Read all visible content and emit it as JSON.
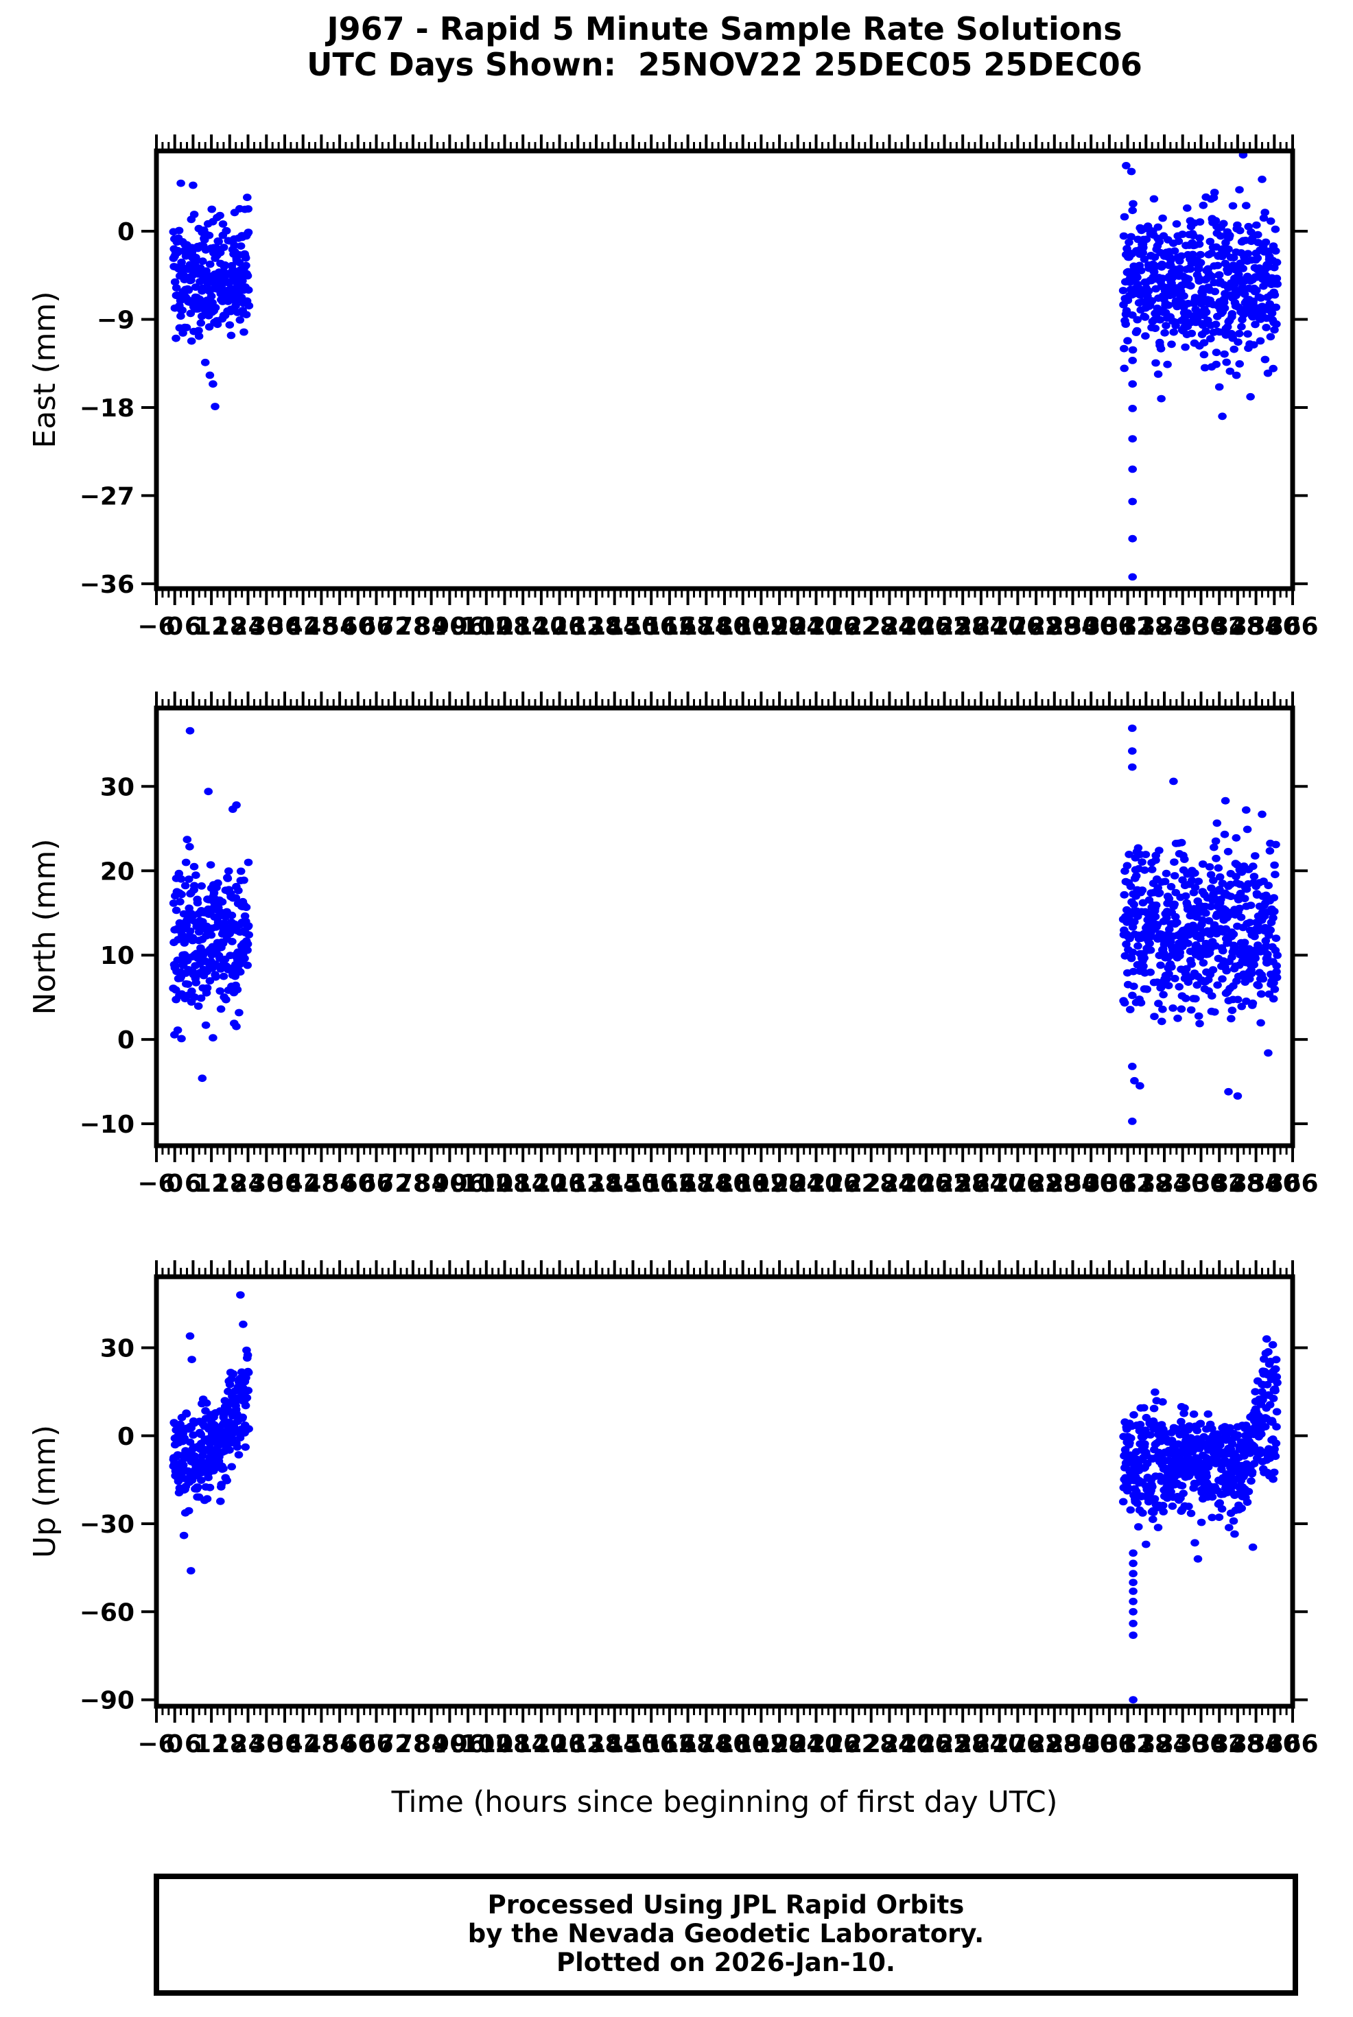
{
  "title": {
    "line1": "J967 - Rapid 5 Minute Sample Rate Solutions",
    "line2": "UTC Days Shown:  25NOV22 25DEC05 25DEC06"
  },
  "footer": {
    "line1": "Processed Using JPL Rapid Orbits",
    "line2": "by the Nevada Geodetic Laboratory.",
    "line3": "Plotted on 2026-Jan-10."
  },
  "colors": {
    "marker": "#0000ff",
    "axis": "#000000",
    "background": "#ffffff"
  },
  "chart_data": {
    "type": "scatter",
    "station": "J967",
    "utc_days": [
      "25NOV22",
      "25DEC05",
      "25DEC06"
    ],
    "xlabel": "Time (hours since beginning of first day UTC)",
    "x_axis": {
      "min": -6,
      "max": 366,
      "major_tick_step": 6,
      "minor_tick_step": 2,
      "label_step": 6
    },
    "marker": {
      "shape": "ellipse",
      "rx": 6.3,
      "ry": 5.4
    },
    "grid": false,
    "seed": 20260110,
    "panels": [
      {
        "id": "east",
        "ylabel": "East (mm)",
        "ylim": [
          -36.5,
          8.2
        ],
        "yticks": [
          0,
          -9,
          -18,
          -27,
          -36
        ],
        "clusters": [
          {
            "h0": -0.5,
            "h1": 24.3,
            "n": 288,
            "m0": -4.3,
            "m1": -4.8,
            "sd": 3.1,
            "lo": -12.5,
            "hi": 4.6
          },
          {
            "h0": 310.5,
            "h1": 361.0,
            "n": 576,
            "m0": -4.8,
            "m1": -5.8,
            "sd": 3.6,
            "lo": -14.8,
            "hi": 4.8
          }
        ],
        "outliers": [
          [
            2,
            4.9
          ],
          [
            6,
            4.7
          ],
          [
            10,
            -13.4
          ],
          [
            11.5,
            -14.7
          ],
          [
            12.5,
            -15.6
          ],
          [
            13.2,
            -17.9
          ],
          [
            313.6,
            -13.2
          ],
          [
            313.6,
            -15.6
          ],
          [
            313.6,
            -18.1
          ],
          [
            313.6,
            -21.2
          ],
          [
            313.6,
            -24.3
          ],
          [
            313.6,
            -27.6
          ],
          [
            313.6,
            -31.4
          ],
          [
            313.6,
            -35.3
          ],
          [
            311.5,
            6.7
          ],
          [
            313.2,
            6.1
          ],
          [
            349.8,
            7.8
          ],
          [
            356,
            5.3
          ],
          [
            322,
            -14.6
          ],
          [
            323,
            -17.1
          ],
          [
            337,
            -12.6
          ],
          [
            341,
            -13.6
          ],
          [
            342,
            -15.9
          ],
          [
            343,
            -18.9
          ],
          [
            352.2,
            -16.9
          ],
          [
            357,
            -13.1
          ]
        ]
      },
      {
        "id": "north",
        "ylabel": "North (mm)",
        "ylim": [
          -12.6,
          39.3
        ],
        "yticks": [
          30,
          20,
          10,
          0,
          -10
        ],
        "clusters": [
          {
            "h0": -0.5,
            "h1": 24.3,
            "n": 288,
            "m0": 11.2,
            "m1": 11.8,
            "sd": 4.4,
            "lo": 0.3,
            "hi": 24.2
          },
          {
            "h0": 310.5,
            "h1": 361.0,
            "n": 576,
            "m0": 13.5,
            "m1": 12.5,
            "sd": 4.9,
            "lo": 1.6,
            "hi": 26.2
          }
        ],
        "outliers": [
          [
            5,
            36.6
          ],
          [
            11,
            29.4
          ],
          [
            19,
            27.3
          ],
          [
            20.2,
            27.8
          ],
          [
            9,
            -4.6
          ],
          [
            2.2,
            0.1
          ],
          [
            12.5,
            0.2
          ],
          [
            313.5,
            36.9
          ],
          [
            313.5,
            34.2
          ],
          [
            313.5,
            32.3
          ],
          [
            327,
            30.6
          ],
          [
            344,
            28.3
          ],
          [
            350.8,
            27.2
          ],
          [
            356,
            26.7
          ],
          [
            313.5,
            -3.2
          ],
          [
            314.2,
            -4.9
          ],
          [
            316,
            -5.5
          ],
          [
            345,
            -6.2
          ],
          [
            348,
            -6.7
          ],
          [
            358,
            -1.6
          ],
          [
            313.5,
            -9.7
          ]
        ]
      },
      {
        "id": "up",
        "ylabel": "Up (mm)",
        "ylim": [
          -92.2,
          54.2
        ],
        "yticks": [
          30,
          0,
          -30,
          -60,
          -90
        ],
        "clusters": [
          {
            "h0": -0.5,
            "h1": 8,
            "n": 102,
            "m0": -8,
            "m1": -9,
            "sd": 8,
            "lo": -28,
            "hi": 8
          },
          {
            "h0": 8,
            "h1": 16,
            "n": 96,
            "m0": -7,
            "m1": -3,
            "sd": 8,
            "lo": -24,
            "hi": 13
          },
          {
            "h0": 16,
            "h1": 21,
            "n": 54,
            "m0": 0,
            "m1": 8,
            "sd": 9,
            "lo": -17,
            "hi": 23
          },
          {
            "h0": 21,
            "h1": 24.3,
            "n": 36,
            "m0": 12,
            "m1": 17,
            "sd": 10,
            "lo": -6,
            "hi": 39
          },
          {
            "h0": 310.5,
            "h1": 322,
            "n": 138,
            "m0": -12,
            "m1": -10,
            "sd": 10,
            "lo": -34,
            "hi": 15
          },
          {
            "h0": 322,
            "h1": 336,
            "n": 168,
            "m0": -8,
            "m1": -9,
            "sd": 8.5,
            "lo": -30,
            "hi": 12
          },
          {
            "h0": 336,
            "h1": 350,
            "n": 162,
            "m0": -13,
            "m1": -12,
            "sd": 8.5,
            "lo": -32,
            "hi": 8
          },
          {
            "h0": 350,
            "h1": 356,
            "n": 66,
            "m0": -4,
            "m1": 3,
            "sd": 10,
            "lo": -25,
            "hi": 21
          },
          {
            "h0": 356,
            "h1": 361,
            "n": 60,
            "m0": 7,
            "m1": 11,
            "sd": 12,
            "lo": -18,
            "hi": 34
          }
        ],
        "outliers": [
          [
            5,
            34
          ],
          [
            5.6,
            26
          ],
          [
            3,
            -34
          ],
          [
            5.3,
            -46
          ],
          [
            21.5,
            48
          ],
          [
            22.4,
            38
          ],
          [
            313.8,
            -40
          ],
          [
            313.8,
            -43.5
          ],
          [
            313.8,
            -47
          ],
          [
            313.8,
            -50
          ],
          [
            313.8,
            -53
          ],
          [
            313.8,
            -56.5
          ],
          [
            313.8,
            -60
          ],
          [
            313.8,
            -64
          ],
          [
            313.8,
            -68
          ],
          [
            313.8,
            -90
          ],
          [
            318,
            -37
          ],
          [
            334,
            -36.5
          ],
          [
            335,
            -42
          ],
          [
            347,
            -33.5
          ],
          [
            353,
            -38
          ],
          [
            357.5,
            33
          ],
          [
            359.5,
            31
          ]
        ]
      }
    ]
  }
}
